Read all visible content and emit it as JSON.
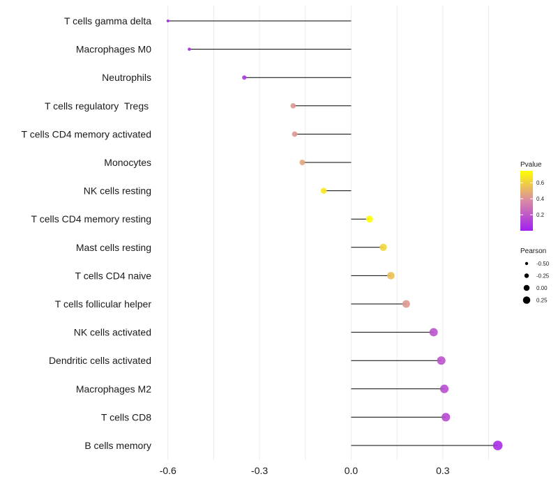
{
  "chart_data": {
    "type": "lollipop",
    "title": "",
    "xlabel": "",
    "ylabel": "",
    "xlim": [
      -0.62,
      0.49
    ],
    "x_ticks": [
      -0.6,
      -0.3,
      0.0,
      0.3
    ],
    "x_tick_labels": [
      "-0.6",
      "-0.3",
      "0.0",
      "0.3"
    ],
    "grid": true,
    "categories": [
      "T cells gamma delta",
      "Macrophages M0",
      "Neutrophils",
      "T cells regulatory  Tregs ",
      "T cells CD4 memory activated",
      "Monocytes",
      "NK cells resting",
      "T cells CD4 memory resting",
      "Mast cells resting",
      "T cells CD4 naive",
      "T cells follicular helper",
      "NK cells activated",
      "Dendritic cells activated",
      "Macrophages M2",
      "T cells CD8",
      "B cells memory"
    ],
    "values": [
      -0.6,
      -0.53,
      -0.35,
      -0.19,
      -0.185,
      -0.16,
      -0.09,
      0.06,
      0.105,
      0.13,
      0.18,
      0.27,
      0.295,
      0.305,
      0.31,
      0.48
    ],
    "pvalues": [
      0.02,
      0.05,
      0.08,
      0.42,
      0.42,
      0.46,
      0.68,
      0.75,
      0.62,
      0.55,
      0.42,
      0.18,
      0.18,
      0.16,
      0.15,
      0.05
    ],
    "color_scale": {
      "title": "Pvalue",
      "ticks": [
        0.2,
        0.4,
        0.6
      ],
      "tick_labels": [
        "0.2",
        "0.4",
        "0.6"
      ],
      "range": [
        0.0,
        0.75
      ],
      "low_color": "#a020f0",
      "mid_color": "#d98aa4",
      "high_color": "#ffff00"
    },
    "size_scale": {
      "title": "Pearson",
      "values": [
        -0.5,
        -0.25,
        0.0,
        0.25
      ],
      "labels": [
        "-0.50",
        "-0.25",
        "0.00",
        "0.25"
      ]
    },
    "legend_position": "right",
    "segment_color": "#000000"
  }
}
